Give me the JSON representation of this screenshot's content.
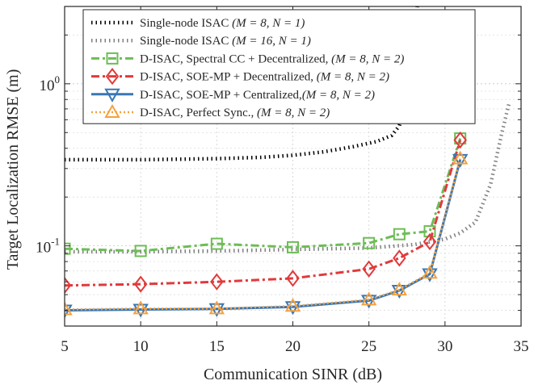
{
  "chart_data": {
    "type": "line",
    "xlabel": "Communication SINR (dB)",
    "ylabel": "Target Localization RMSE (m)",
    "xlim": [
      5,
      35
    ],
    "ylim": [
      0.032,
      3
    ],
    "yscale": "log",
    "grid": true,
    "legend_position": "top-center",
    "x_ticks": [
      5,
      10,
      15,
      20,
      25,
      30,
      35
    ],
    "x_tick_labels": [
      "5",
      "10",
      "15",
      "20",
      "25",
      "30",
      "35"
    ],
    "y_ticks": [
      0.1,
      1
    ],
    "y_tick_labels": [
      {
        "base": "10",
        "exp": "-1"
      },
      {
        "base": "10",
        "exp": "0"
      }
    ],
    "series": [
      {
        "name": "Single-node ISAC (M = 8, N = 1)",
        "legend_prefix": "Single-node ISAC ",
        "legend_params": "(M = 8, N = 1)",
        "legend_suffix": "",
        "color": "#000000",
        "line_style": "dotted",
        "marker": "none",
        "x": [
          5,
          10,
          15,
          18,
          20,
          22,
          24,
          25.5,
          26.5,
          27,
          27.6,
          28,
          28.3
        ],
        "y": [
          0.34,
          0.34,
          0.345,
          0.352,
          0.362,
          0.38,
          0.41,
          0.44,
          0.48,
          0.55,
          0.9,
          2.0,
          4.0
        ]
      },
      {
        "name": "Single-node ISAC (M = 16, N = 1)",
        "legend_prefix": "Single-node ISAC ",
        "legend_params": "(M = 16, N = 1)",
        "legend_suffix": "",
        "color": "#7f7f7f",
        "line_style": "dotted",
        "marker": "none",
        "x": [
          5,
          10,
          15,
          20,
          25,
          28,
          30,
          31,
          32,
          33,
          33.7,
          34.2
        ],
        "y": [
          0.092,
          0.092,
          0.093,
          0.095,
          0.097,
          0.102,
          0.11,
          0.12,
          0.14,
          0.24,
          0.48,
          0.75
        ]
      },
      {
        "name": "D-ISAC, Spectral CC + Decentralized, (M = 8, N = 2)",
        "legend_prefix": "D-ISAC, Spectral CC + Decentralized, ",
        "legend_params": "(M = 8, N = 2)",
        "legend_suffix": "",
        "color": "#6cbd55",
        "line_style": "dashdot",
        "marker": "square",
        "x": [
          5,
          10,
          15,
          20,
          25,
          27,
          29,
          31
        ],
        "y": [
          0.096,
          0.093,
          0.103,
          0.098,
          0.104,
          0.118,
          0.123,
          0.46
        ]
      },
      {
        "name": "D-ISAC, SOE-MP + Decentralized, (M = 8, N = 2)",
        "legend_prefix": "D-ISAC, SOE-MP + Decentralized, ",
        "legend_params": "(M = 8, N = 2)",
        "legend_suffix": "",
        "color": "#e03a3c",
        "line_style": "dashdot",
        "marker": "diamond",
        "x": [
          5,
          10,
          15,
          20,
          25,
          27,
          29,
          31
        ],
        "y": [
          0.057,
          0.058,
          0.06,
          0.063,
          0.072,
          0.084,
          0.106,
          0.45
        ]
      },
      {
        "name": "D-ISAC, SOE-MP + Centralized, (M = 8, N = 2)",
        "legend_prefix": "D-ISAC, SOE-MP + Centralized,",
        "legend_params": "(M = 8, N = 2)",
        "legend_suffix": "",
        "color": "#3a77b3",
        "line_style": "solid",
        "marker": "triangle-down",
        "x": [
          5,
          10,
          15,
          20,
          25,
          27,
          29,
          31
        ],
        "y": [
          0.04,
          0.0405,
          0.0408,
          0.042,
          0.046,
          0.053,
          0.067,
          0.34
        ]
      },
      {
        "name": "D-ISAC, Perfect Sync., (M = 8, N = 2)",
        "legend_prefix": "D-ISAC, Perfect Sync., ",
        "legend_params": "(M = 8, N = 2)",
        "legend_suffix": "",
        "color": "#f5a13e",
        "line_style": "dotted",
        "marker": "triangle-up",
        "x": [
          5,
          10,
          15,
          20,
          25,
          27,
          29,
          31
        ],
        "y": [
          0.0405,
          0.041,
          0.041,
          0.0425,
          0.0465,
          0.0535,
          0.068,
          0.345
        ]
      }
    ]
  }
}
